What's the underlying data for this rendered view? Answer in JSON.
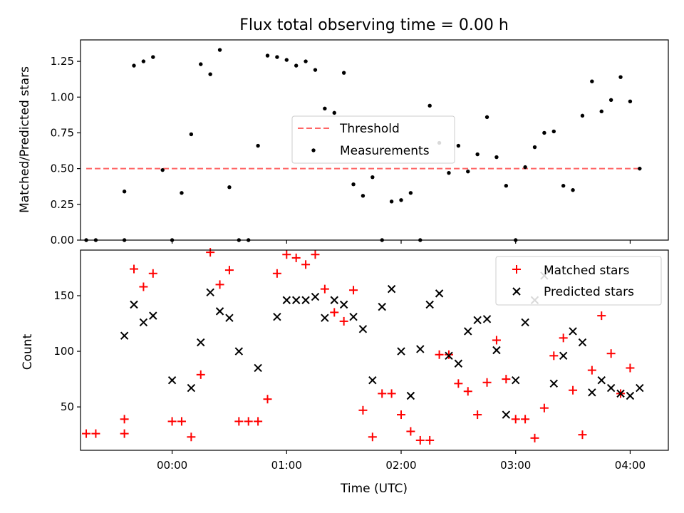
{
  "chart_data": [
    {
      "type": "scatter",
      "title": "Flux total observing time = 0.00 h",
      "xlabel": "",
      "ylabel": "Matched/Predicted stars",
      "xlim": [
        "23:12",
        "04:20"
      ],
      "ylim": [
        0,
        1.4
      ],
      "yticks": [
        "0.00",
        "0.25",
        "0.50",
        "0.75",
        "1.00",
        "1.25"
      ],
      "grid": false,
      "legend_position": "center",
      "threshold": {
        "name": "Threshold",
        "value": 0.5,
        "x_start": "23:15",
        "x_end": "04:05",
        "color": "#ff6666"
      },
      "series": [
        {
          "name": "Measurements",
          "color": "#000000",
          "x": [
            "23:15",
            "23:20",
            "23:35",
            "23:35",
            "23:40",
            "23:45",
            "23:50",
            "23:55",
            "00:00",
            "00:05",
            "00:10",
            "00:15",
            "00:20",
            "00:25",
            "00:30",
            "00:35",
            "00:40",
            "00:45",
            "00:50",
            "00:55",
            "01:00",
            "01:05",
            "01:10",
            "01:15",
            "01:20",
            "01:25",
            "01:30",
            "01:35",
            "01:40",
            "01:45",
            "01:50",
            "01:55",
            "02:00",
            "02:05",
            "02:10",
            "02:15",
            "02:20",
            "02:25",
            "02:30",
            "02:35",
            "02:40",
            "02:45",
            "02:50",
            "02:55",
            "03:00",
            "03:05",
            "03:10",
            "03:15",
            "03:20",
            "03:25",
            "03:30",
            "03:35",
            "03:40",
            "03:45",
            "03:50",
            "03:55",
            "04:00",
            "04:05"
          ],
          "y": [
            0,
            0,
            0,
            0.34,
            1.22,
            1.25,
            1.28,
            0.49,
            0,
            0.33,
            0.74,
            1.23,
            1.16,
            1.33,
            0.37,
            0,
            0,
            0.66,
            1.29,
            1.28,
            1.26,
            1.22,
            1.25,
            1.19,
            0.92,
            0.89,
            1.17,
            0.39,
            0.31,
            0.44,
            0,
            0.27,
            0.28,
            0.33,
            0,
            0.94,
            0.68,
            0.47,
            0.66,
            0.48,
            0.6,
            0.86,
            0.58,
            0.38,
            0,
            0.51,
            0.65,
            0.75,
            0.76,
            0.38,
            0.35,
            0.87,
            1.11,
            0.9,
            0.98,
            1.14,
            0.97,
            0.5
          ]
        }
      ]
    },
    {
      "type": "scatter",
      "title": "",
      "xlabel": "Time (UTC)",
      "ylabel": "Count",
      "xlim": [
        "23:12",
        "04:20"
      ],
      "ylim": [
        11,
        191
      ],
      "xticks": [
        "00:00",
        "01:00",
        "02:00",
        "03:00",
        "04:00"
      ],
      "yticks": [
        50,
        100,
        150
      ],
      "grid": false,
      "legend_position": "top-right",
      "series": [
        {
          "name": "Matched stars",
          "marker": "+",
          "color": "#ff0000",
          "x": [
            "23:15",
            "23:20",
            "23:35",
            "23:35",
            "23:40",
            "23:45",
            "23:50",
            "00:00",
            "00:05",
            "00:10",
            "00:15",
            "00:20",
            "00:25",
            "00:30",
            "00:35",
            "00:40",
            "00:45",
            "00:50",
            "00:55",
            "01:00",
            "01:05",
            "01:10",
            "01:15",
            "01:20",
            "01:25",
            "01:30",
            "01:35",
            "01:40",
            "01:45",
            "01:50",
            "01:55",
            "02:00",
            "02:05",
            "02:10",
            "02:15",
            "02:20",
            "02:25",
            "02:30",
            "02:35",
            "02:40",
            "02:45",
            "02:50",
            "02:55",
            "03:00",
            "03:05",
            "03:10",
            "03:15",
            "03:20",
            "03:25",
            "03:30",
            "03:35",
            "03:40",
            "03:45",
            "03:50",
            "03:55",
            "04:00"
          ],
          "y": [
            26,
            26,
            26,
            39,
            174,
            158,
            170,
            37,
            37,
            23,
            79,
            189,
            160,
            173,
            37,
            37,
            37,
            57,
            170,
            187,
            184,
            178,
            187,
            156,
            135,
            127,
            155,
            47,
            23,
            62,
            62,
            43,
            28,
            20,
            20,
            97,
            97,
            71,
            64,
            43,
            72,
            110,
            75,
            39,
            39,
            22,
            49,
            96,
            112,
            65,
            25,
            83,
            132,
            98,
            62,
            85
          ]
        },
        {
          "name": "Predicted stars",
          "marker": "x",
          "color": "#000000",
          "x": [
            "23:35",
            "23:40",
            "23:45",
            "23:50",
            "00:00",
            "00:10",
            "00:15",
            "00:20",
            "00:25",
            "00:30",
            "00:35",
            "00:45",
            "00:55",
            "01:00",
            "01:05",
            "01:10",
            "01:15",
            "01:20",
            "01:25",
            "01:30",
            "01:35",
            "01:40",
            "01:45",
            "01:50",
            "01:55",
            "02:00",
            "02:05",
            "02:10",
            "02:15",
            "02:20",
            "02:25",
            "02:30",
            "02:35",
            "02:40",
            "02:45",
            "02:50",
            "02:55",
            "03:00",
            "03:05",
            "03:10",
            "03:15",
            "03:20",
            "03:25",
            "03:30",
            "03:35",
            "03:40",
            "03:45",
            "03:50",
            "03:55",
            "04:00",
            "04:05"
          ],
          "y": [
            114,
            142,
            126,
            132,
            74,
            67,
            108,
            153,
            136,
            130,
            100,
            85,
            131,
            146,
            146,
            146,
            149,
            130,
            146,
            142,
            131,
            120,
            74,
            140,
            156,
            100,
            60,
            102,
            142,
            152,
            96,
            89,
            118,
            128,
            129,
            101,
            43,
            74,
            126,
            146,
            168,
            71,
            96,
            118,
            108,
            63,
            74,
            67,
            62,
            60,
            67
          ]
        }
      ]
    }
  ]
}
